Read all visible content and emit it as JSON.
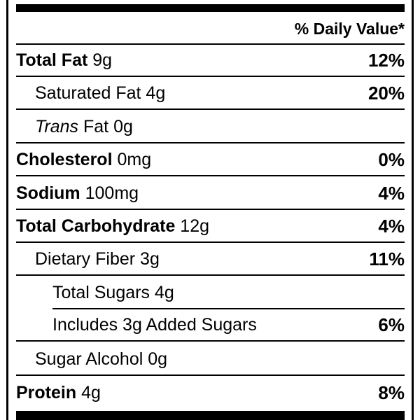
{
  "header": {
    "daily_value_label": "% Daily Value*"
  },
  "rows": [
    {
      "bold": "Total Fat",
      "italic": "",
      "text": " 9g",
      "pct": "12%"
    },
    {
      "bold": "",
      "italic": "",
      "text": "Saturated Fat 4g",
      "pct": "20%"
    },
    {
      "bold": "",
      "italic": "Trans",
      "text": " Fat 0g",
      "pct": ""
    },
    {
      "bold": "Cholesterol",
      "italic": "",
      "text": " 0mg",
      "pct": "0%"
    },
    {
      "bold": "Sodium",
      "italic": "",
      "text": " 100mg",
      "pct": "4%"
    },
    {
      "bold": "Total Carbohydrate",
      "italic": "",
      "text": " 12g",
      "pct": "4%"
    },
    {
      "bold": "",
      "italic": "",
      "text": "Dietary Fiber 3g",
      "pct": "11%"
    },
    {
      "bold": "",
      "italic": "",
      "text": "Total Sugars 4g",
      "pct": ""
    },
    {
      "bold": "",
      "italic": "",
      "text": "Includes 3g Added Sugars",
      "pct": "6%"
    },
    {
      "bold": "",
      "italic": "",
      "text": "Sugar Alcohol 0g",
      "pct": ""
    },
    {
      "bold": "Protein",
      "italic": "",
      "text": " 4g",
      "pct": "8%"
    }
  ]
}
